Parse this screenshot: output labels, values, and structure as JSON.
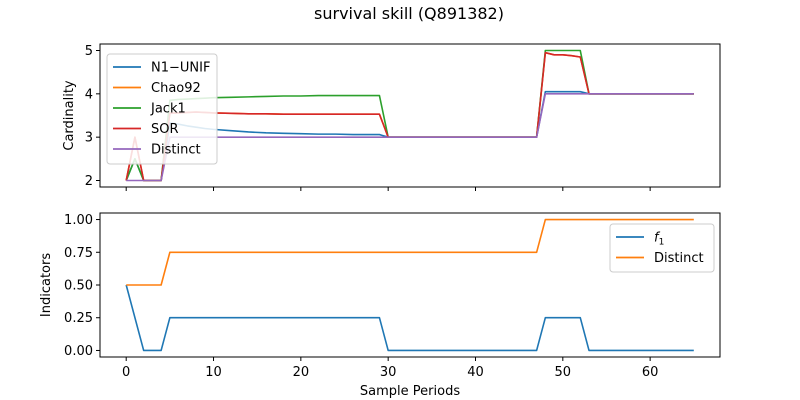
{
  "figure": {
    "title": "survival skill (Q891382)"
  },
  "chart_data": [
    {
      "type": "line",
      "title": "",
      "xlabel": "",
      "ylabel": "Cardinality",
      "xlim": [
        -3,
        68
      ],
      "ylim": [
        1.85,
        5.15
      ],
      "x_ticks": [
        0,
        10,
        20,
        30,
        40,
        50,
        60
      ],
      "x_tick_labels_shown": false,
      "y_ticks": [
        2,
        3,
        4,
        5
      ],
      "legend_position": "upper-left",
      "series": [
        {
          "name": "N1−UNIF",
          "color": "#1f77b4",
          "x": [
            0,
            1,
            2,
            3,
            4,
            5,
            6,
            7,
            8,
            9,
            10,
            12,
            14,
            16,
            18,
            20,
            22,
            24,
            26,
            28,
            29,
            30,
            31,
            32,
            34,
            36,
            38,
            40,
            42,
            44,
            46,
            47,
            48,
            49,
            50,
            51,
            52,
            53,
            54,
            56,
            58,
            60,
            62,
            64,
            65
          ],
          "y": [
            2,
            2.5,
            2,
            2,
            2,
            3.33,
            3.3,
            3.26,
            3.23,
            3.2,
            3.18,
            3.15,
            3.12,
            3.1,
            3.09,
            3.08,
            3.07,
            3.07,
            3.06,
            3.06,
            3.06,
            3,
            3,
            3,
            3,
            3,
            3,
            3,
            3,
            3,
            3,
            3,
            4.05,
            4.05,
            4.05,
            4.05,
            4.05,
            4,
            4,
            4,
            4,
            4,
            4,
            4,
            4
          ]
        },
        {
          "name": "Chao92",
          "color": "#ff7f0e",
          "x": [
            0,
            1,
            2,
            3,
            4,
            5,
            6,
            7,
            8,
            9,
            10,
            12,
            14,
            16,
            18,
            20,
            22,
            24,
            26,
            28,
            29,
            30,
            31,
            32,
            34,
            36,
            38,
            40,
            42,
            44,
            46,
            47,
            48,
            49,
            50,
            51,
            52,
            53,
            54,
            56,
            58,
            60,
            62,
            64,
            65
          ],
          "y": [
            2,
            3,
            2,
            2,
            2,
            3.56,
            3.56,
            3.57,
            3.58,
            3.57,
            3.56,
            3.55,
            3.54,
            3.54,
            3.53,
            3.53,
            3.53,
            3.53,
            3.53,
            3.53,
            3.53,
            3,
            3,
            3,
            3,
            3,
            3,
            3,
            3,
            3,
            3,
            3,
            4.95,
            4.9,
            4.9,
            4.88,
            4.85,
            4,
            4,
            4,
            4,
            4,
            4,
            4,
            4
          ]
        },
        {
          "name": "Jack1",
          "color": "#2ca02c",
          "x": [
            0,
            1,
            2,
            3,
            4,
            5,
            6,
            7,
            8,
            9,
            10,
            12,
            14,
            16,
            18,
            20,
            22,
            24,
            26,
            28,
            29,
            30,
            31,
            32,
            34,
            36,
            38,
            40,
            42,
            44,
            46,
            47,
            48,
            49,
            50,
            51,
            52,
            53,
            54,
            56,
            58,
            60,
            62,
            64,
            65
          ],
          "y": [
            2,
            2.5,
            2,
            2,
            2,
            3.85,
            3.87,
            3.88,
            3.89,
            3.9,
            3.91,
            3.92,
            3.93,
            3.94,
            3.95,
            3.95,
            3.96,
            3.96,
            3.96,
            3.96,
            3.96,
            3,
            3,
            3,
            3,
            3,
            3,
            3,
            3,
            3,
            3,
            3,
            5,
            5,
            5,
            5,
            5,
            4,
            4,
            4,
            4,
            4,
            4,
            4,
            4
          ]
        },
        {
          "name": "SOR",
          "color": "#d62728",
          "x": [
            0,
            1,
            2,
            3,
            4,
            5,
            6,
            7,
            8,
            9,
            10,
            12,
            14,
            16,
            18,
            20,
            22,
            24,
            26,
            28,
            29,
            30,
            31,
            32,
            34,
            36,
            38,
            40,
            42,
            44,
            46,
            47,
            48,
            49,
            50,
            51,
            52,
            53,
            54,
            56,
            58,
            60,
            62,
            64,
            65
          ],
          "y": [
            2,
            3,
            2,
            2,
            2,
            3.55,
            3.56,
            3.57,
            3.58,
            3.57,
            3.56,
            3.55,
            3.54,
            3.54,
            3.53,
            3.53,
            3.53,
            3.53,
            3.53,
            3.53,
            3.53,
            3,
            3,
            3,
            3,
            3,
            3,
            3,
            3,
            3,
            3,
            3,
            4.95,
            4.9,
            4.9,
            4.88,
            4.85,
            4,
            4,
            4,
            4,
            4,
            4,
            4,
            4
          ]
        },
        {
          "name": "Distinct",
          "color": "#9467bd",
          "x": [
            0,
            1,
            2,
            3,
            4,
            5,
            6,
            7,
            8,
            9,
            10,
            12,
            14,
            16,
            18,
            20,
            22,
            24,
            26,
            28,
            29,
            30,
            31,
            32,
            34,
            36,
            38,
            40,
            42,
            44,
            46,
            47,
            48,
            49,
            50,
            51,
            52,
            53,
            54,
            56,
            58,
            60,
            62,
            64,
            65
          ],
          "y": [
            2,
            2,
            2,
            2,
            2,
            3,
            3,
            3,
            3,
            3,
            3,
            3,
            3,
            3,
            3,
            3,
            3,
            3,
            3,
            3,
            3,
            3,
            3,
            3,
            3,
            3,
            3,
            3,
            3,
            3,
            3,
            3,
            4,
            4,
            4,
            4,
            4,
            4,
            4,
            4,
            4,
            4,
            4,
            4,
            4
          ]
        }
      ]
    },
    {
      "type": "line",
      "title": "",
      "xlabel": "Sample Periods",
      "ylabel": "Indicators",
      "xlim": [
        -3,
        68
      ],
      "ylim": [
        -0.05,
        1.05
      ],
      "x_ticks": [
        0,
        10,
        20,
        30,
        40,
        50,
        60
      ],
      "x_tick_labels_shown": true,
      "y_ticks": [
        0.0,
        0.25,
        0.5,
        0.75,
        1.0
      ],
      "y_tick_labels": [
        "0.00",
        "0.25",
        "0.50",
        "0.75",
        "1.00"
      ],
      "legend_position": "upper-right",
      "series": [
        {
          "name": "f1",
          "color": "#1f77b4",
          "x": [
            0,
            2,
            4,
            5,
            29,
            30,
            47,
            48,
            52,
            53,
            65
          ],
          "y": [
            0.5,
            0,
            0,
            0.25,
            0.25,
            0,
            0,
            0.25,
            0.25,
            0,
            0
          ]
        },
        {
          "name": "Distinct",
          "color": "#ff7f0e",
          "x": [
            0,
            4,
            5,
            47,
            48,
            65
          ],
          "y": [
            0.5,
            0.5,
            0.75,
            0.75,
            1,
            1
          ]
        }
      ]
    }
  ]
}
